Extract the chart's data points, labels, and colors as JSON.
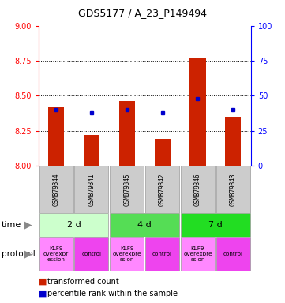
{
  "title": "GDS5177 / A_23_P149494",
  "samples": [
    "GSM879344",
    "GSM879341",
    "GSM879345",
    "GSM879342",
    "GSM879346",
    "GSM879343"
  ],
  "transformed_counts": [
    8.42,
    8.22,
    8.46,
    8.19,
    8.77,
    8.35
  ],
  "percentile_ranks": [
    40,
    38,
    40,
    38,
    48,
    40
  ],
  "ylim_left": [
    8.0,
    9.0
  ],
  "ylim_right": [
    0,
    100
  ],
  "yticks_left": [
    8.0,
    8.25,
    8.5,
    8.75,
    9.0
  ],
  "yticks_right": [
    0,
    25,
    50,
    75,
    100
  ],
  "bar_color": "#CC2200",
  "dot_color": "#0000CC",
  "time_groups": [
    {
      "label": "2 d",
      "cols": [
        0,
        1
      ],
      "color": "#CCFFCC"
    },
    {
      "label": "4 d",
      "cols": [
        2,
        3
      ],
      "color": "#55DD55"
    },
    {
      "label": "7 d",
      "cols": [
        4,
        5
      ],
      "color": "#22DD22"
    }
  ],
  "prot_groups": [
    {
      "label": "KLF9\noverexpr\nession",
      "col": 0,
      "color": "#FF88FF"
    },
    {
      "label": "control",
      "col": 1,
      "color": "#EE44EE"
    },
    {
      "label": "KLF9\noverexpre\nssion",
      "col": 2,
      "color": "#FF88FF"
    },
    {
      "label": "control",
      "col": 3,
      "color": "#EE44EE"
    },
    {
      "label": "KLF9\noverexpre\nssion",
      "col": 4,
      "color": "#FF88FF"
    },
    {
      "label": "control",
      "col": 5,
      "color": "#EE44EE"
    }
  ],
  "sample_box_color": "#CCCCCC",
  "sample_box_edge": "#999999",
  "legend_red_label": "transformed count",
  "legend_blue_label": "percentile rank within the sample",
  "time_label": "time",
  "protocol_label": "protocol"
}
